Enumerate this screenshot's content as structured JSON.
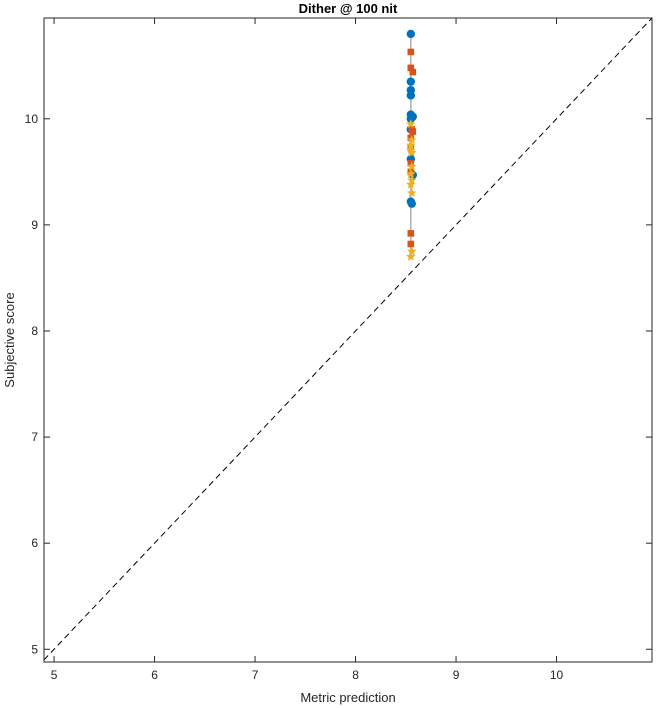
{
  "chart_data": {
    "type": "scatter",
    "title": "Dither @ 100 nit",
    "xlabel": "Metric prediction",
    "ylabel": "Subjective score",
    "xlim": [
      4.9,
      10.95
    ],
    "ylim": [
      4.88,
      10.95
    ],
    "xticks": [
      "5",
      "6",
      "7",
      "8",
      "9",
      "10"
    ],
    "yticks": [
      "5",
      "6",
      "7",
      "8",
      "9",
      "10"
    ],
    "grid": false,
    "reference_line": {
      "style": "dashed",
      "from": [
        4.9,
        4.9
      ],
      "to": [
        10.95,
        10.95
      ],
      "color": "#000000"
    },
    "connector": {
      "x": 8.55,
      "y_range": [
        8.68,
        10.8
      ],
      "color": "#b0b0b0"
    },
    "series": [
      {
        "marker": "circle",
        "color": "#0072BD",
        "points": [
          [
            8.55,
            10.8
          ],
          [
            8.55,
            10.35
          ],
          [
            8.55,
            10.27
          ],
          [
            8.55,
            10.22
          ],
          [
            8.55,
            10.04
          ],
          [
            8.57,
            10.02
          ],
          [
            8.55,
            10.0
          ],
          [
            8.55,
            9.9
          ],
          [
            8.55,
            9.62
          ],
          [
            8.57,
            9.47
          ],
          [
            8.55,
            9.22
          ],
          [
            8.56,
            9.2
          ]
        ]
      },
      {
        "marker": "square",
        "color": "#D95319",
        "points": [
          [
            8.55,
            10.63
          ],
          [
            8.55,
            10.48
          ],
          [
            8.57,
            10.44
          ],
          [
            8.56,
            9.9
          ],
          [
            8.57,
            9.88
          ],
          [
            8.55,
            9.82
          ],
          [
            8.55,
            9.73
          ],
          [
            8.55,
            9.58
          ],
          [
            8.55,
            9.5
          ],
          [
            8.55,
            8.92
          ],
          [
            8.55,
            8.82
          ]
        ]
      },
      {
        "marker": "star",
        "color": "#EDB120",
        "points": [
          [
            8.55,
            9.95
          ],
          [
            8.56,
            9.8
          ],
          [
            8.55,
            9.75
          ],
          [
            8.55,
            9.7
          ],
          [
            8.56,
            9.68
          ],
          [
            8.56,
            9.55
          ],
          [
            8.55,
            9.48
          ],
          [
            8.56,
            9.42
          ],
          [
            8.55,
            9.38
          ],
          [
            8.56,
            9.3
          ],
          [
            8.56,
            8.75
          ],
          [
            8.55,
            8.7
          ]
        ]
      }
    ]
  }
}
